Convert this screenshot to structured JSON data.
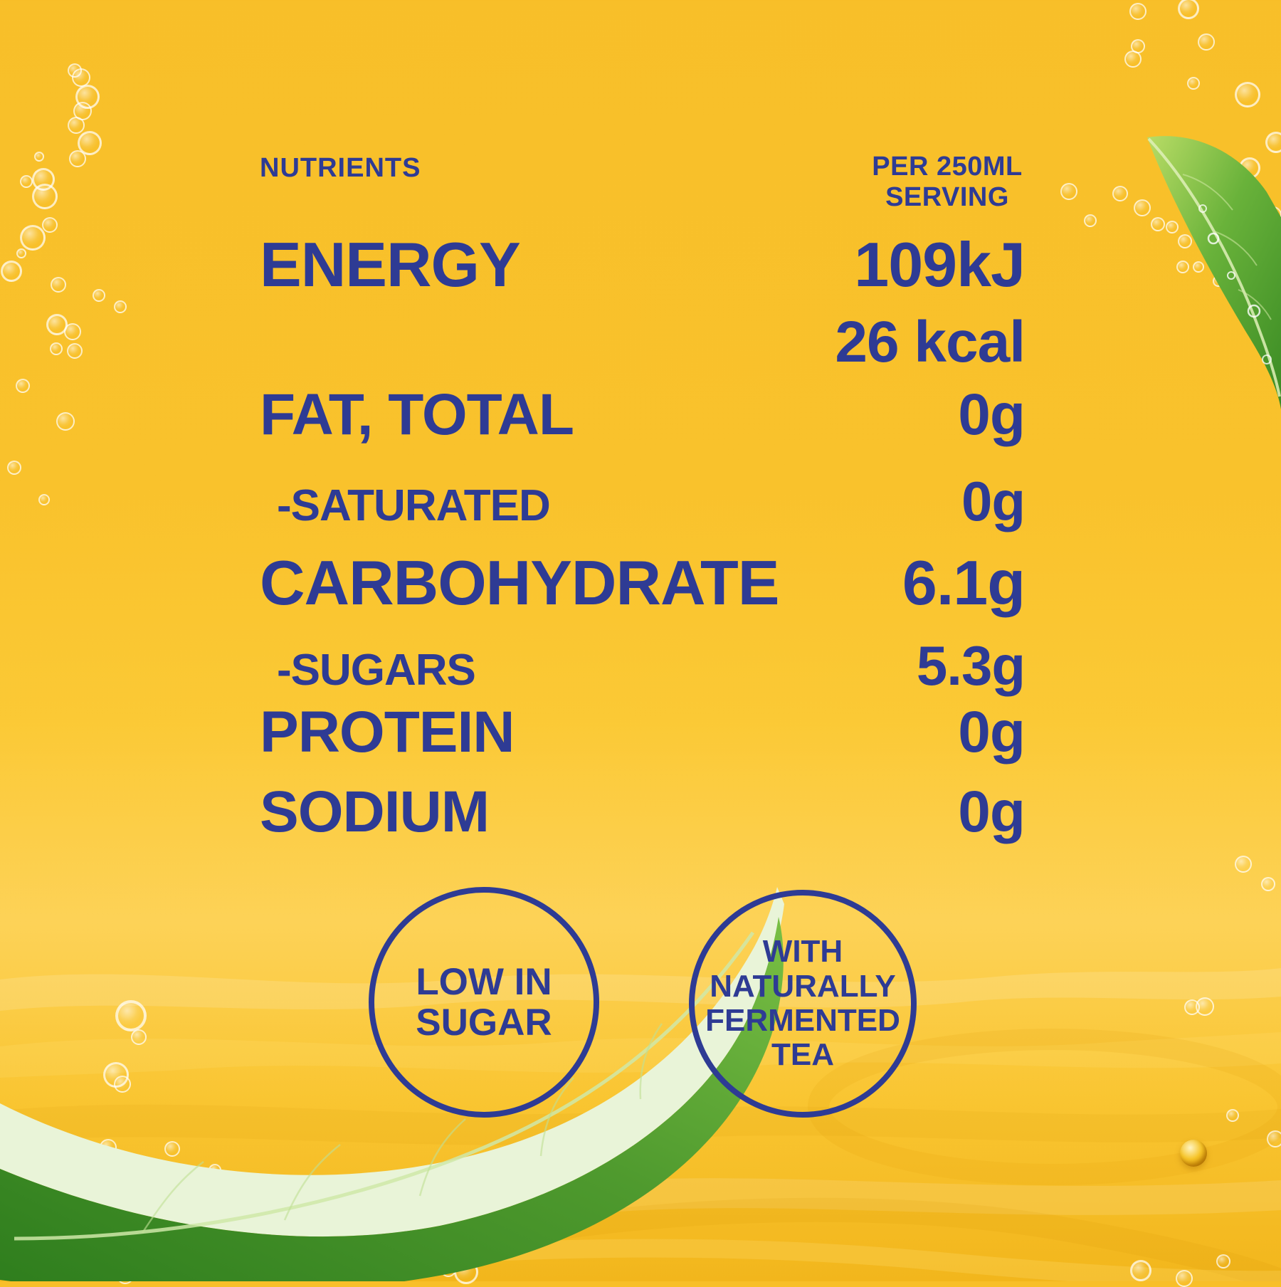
{
  "panel": {
    "col_header_left": "NUTRIENTS",
    "col_header_right_line1": "PER 250ML",
    "col_header_right_line2": "SERVING",
    "rows": [
      {
        "label": "ENERGY",
        "value": "109kJ"
      },
      {
        "label": "",
        "value": "26 kcal"
      },
      {
        "label": "FAT, TOTAL",
        "value": "0g"
      },
      {
        "label": "-SATURATED",
        "value": "0g"
      },
      {
        "label": "CARBOHYDRATE",
        "value": "6.1g"
      },
      {
        "label": "-SUGARS",
        "value": "5.3g"
      },
      {
        "label": "PROTEIN",
        "value": "0g"
      },
      {
        "label": "SODIUM",
        "value": "0g"
      }
    ]
  },
  "badges": [
    {
      "lines": [
        "LOW IN",
        "SUGAR"
      ]
    },
    {
      "lines": [
        "WITH",
        "NATURALLY",
        "FERMENTED",
        "TEA"
      ]
    }
  ],
  "colors": {
    "background_yellow": "#f9c22b",
    "text_blue": "#2e3b94",
    "leaf_green": "#4f9a2e",
    "bubble_white": "#ffffff"
  }
}
